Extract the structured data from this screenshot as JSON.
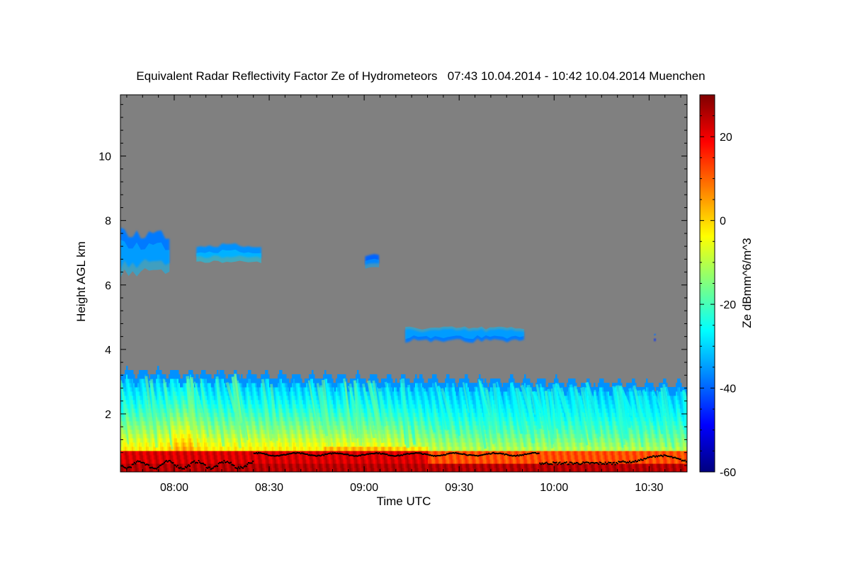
{
  "chart_data": {
    "type": "heatmap",
    "title": "Equivalent Radar Reflectivity Factor Ze of Hydrometeors   07:43 10.04.2014 - 10:42 10.04.2014 Muenchen",
    "xlabel": "Time UTC",
    "ylabel": "Height AGL km",
    "colorbar_label": "Ze dBmm^6/m^3",
    "x_range_minutes": [
      463,
      642
    ],
    "y_range_km": [
      0.2,
      11.9
    ],
    "x_ticks": [
      {
        "minute": 480,
        "label": "08:00"
      },
      {
        "minute": 510,
        "label": "08:30"
      },
      {
        "minute": 540,
        "label": "09:00"
      },
      {
        "minute": 570,
        "label": "09:30"
      },
      {
        "minute": 600,
        "label": "10:00"
      },
      {
        "minute": 630,
        "label": "10:30"
      }
    ],
    "y_ticks": [
      2,
      4,
      6,
      8,
      10
    ],
    "colorbar_range": [
      -60,
      30
    ],
    "colorbar_ticks": [
      20,
      0,
      -20,
      -40,
      -60
    ],
    "colormap": "jet",
    "background_color": "#808080",
    "cloud_base_marker_color": "#000000",
    "features": [
      {
        "name": "low cloud layer / precipitation",
        "x": [
          463,
          642
        ],
        "top_km": [
          3.3,
          2.9
        ],
        "max_ze_near_ground_dbz": 30
      },
      {
        "name": "high cloud patch 1",
        "x": [
          463,
          478.5
        ],
        "y": [
          6.4,
          7.8
        ],
        "ze_dbz": -38
      },
      {
        "name": "high cloud patch 2",
        "x": [
          487,
          507.5
        ],
        "y": [
          6.8,
          7.3
        ],
        "ze_dbz": -36
      },
      {
        "name": "high cloud patch 3",
        "x": [
          540.3,
          544.7
        ],
        "y": [
          6.6,
          7.0
        ],
        "ze_dbz": -40
      },
      {
        "name": "mid cloud band",
        "x": [
          553,
          590.5
        ],
        "y": [
          4.2,
          4.65
        ],
        "ze_dbz": -38
      },
      {
        "name": "isolated echo",
        "x": [
          631.5,
          632.2
        ],
        "y": [
          4.25,
          4.35
        ],
        "ze_dbz": -45
      }
    ]
  }
}
